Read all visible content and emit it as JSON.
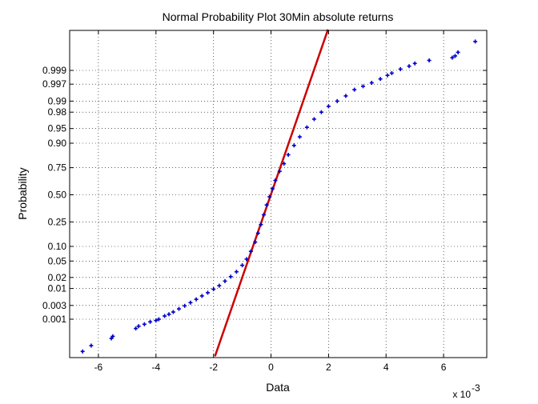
{
  "chart_data": {
    "type": "scatter",
    "title": "Normal Probability Plot 30Min absolute returns",
    "xlabel": "Data",
    "ylabel": "Probability",
    "x_multiplier": "x 10",
    "x_exponent": "-3",
    "xlim": [
      -7,
      7.5
    ],
    "x_ticks": [
      -6,
      -4,
      -2,
      0,
      2,
      4,
      6
    ],
    "x_tick_labels": [
      "-6",
      "-4",
      "-2",
      "0",
      "2",
      "4",
      "6"
    ],
    "y_ticks": [
      0.001,
      0.003,
      0.01,
      0.02,
      0.05,
      0.1,
      0.25,
      0.5,
      0.75,
      0.9,
      0.95,
      0.98,
      0.99,
      0.997,
      0.999
    ],
    "y_tick_labels": [
      "0.001",
      "0.003",
      "0.01",
      "0.02",
      "0.05",
      "0.10",
      "0.25",
      "0.50",
      "0.75",
      "0.90",
      "0.95",
      "0.98",
      "0.99",
      "0.997",
      "0.999"
    ],
    "grid": true,
    "colors": {
      "points": "#0000cc",
      "fit_line": "#cc0000",
      "grid": "#000000"
    },
    "reference_line": {
      "x": [
        -1.95,
        1.98
      ],
      "p": [
        3e-05,
        0.99998
      ]
    },
    "series": [
      {
        "marker": "+",
        "points": [
          {
            "x": -6.55,
            "p": 5e-05
          },
          {
            "x": -6.25,
            "p": 9e-05
          },
          {
            "x": -5.55,
            "p": 0.00018
          },
          {
            "x": -5.5,
            "p": 0.00022
          },
          {
            "x": -4.7,
            "p": 0.00045
          },
          {
            "x": -4.6,
            "p": 0.00055
          },
          {
            "x": -4.4,
            "p": 0.00065
          },
          {
            "x": -4.2,
            "p": 0.0008
          },
          {
            "x": -4.0,
            "p": 0.0009
          },
          {
            "x": -3.9,
            "p": 0.001
          },
          {
            "x": -3.7,
            "p": 0.0013
          },
          {
            "x": -3.55,
            "p": 0.0015
          },
          {
            "x": -3.4,
            "p": 0.0018
          },
          {
            "x": -3.2,
            "p": 0.0023
          },
          {
            "x": -3.0,
            "p": 0.0029
          },
          {
            "x": -2.8,
            "p": 0.0037
          },
          {
            "x": -2.6,
            "p": 0.0047
          },
          {
            "x": -2.4,
            "p": 0.006
          },
          {
            "x": -2.2,
            "p": 0.0075
          },
          {
            "x": -2.0,
            "p": 0.0095
          },
          {
            "x": -1.8,
            "p": 0.012
          },
          {
            "x": -1.6,
            "p": 0.016
          },
          {
            "x": -1.4,
            "p": 0.021
          },
          {
            "x": -1.2,
            "p": 0.028
          },
          {
            "x": -1.0,
            "p": 0.04
          },
          {
            "x": -0.85,
            "p": 0.055
          },
          {
            "x": -0.7,
            "p": 0.08
          },
          {
            "x": -0.55,
            "p": 0.12
          },
          {
            "x": -0.45,
            "p": 0.17
          },
          {
            "x": -0.35,
            "p": 0.23
          },
          {
            "x": -0.25,
            "p": 0.31
          },
          {
            "x": -0.15,
            "p": 0.4
          },
          {
            "x": -0.05,
            "p": 0.48
          },
          {
            "x": 0.05,
            "p": 0.56
          },
          {
            "x": 0.15,
            "p": 0.64
          },
          {
            "x": 0.3,
            "p": 0.72
          },
          {
            "x": 0.45,
            "p": 0.78
          },
          {
            "x": 0.6,
            "p": 0.84
          },
          {
            "x": 0.8,
            "p": 0.89
          },
          {
            "x": 1.0,
            "p": 0.925
          },
          {
            "x": 1.25,
            "p": 0.953
          },
          {
            "x": 1.5,
            "p": 0.97
          },
          {
            "x": 1.75,
            "p": 0.98
          },
          {
            "x": 2.0,
            "p": 0.986
          },
          {
            "x": 2.3,
            "p": 0.99
          },
          {
            "x": 2.6,
            "p": 0.993
          },
          {
            "x": 2.9,
            "p": 0.9955
          },
          {
            "x": 3.2,
            "p": 0.9965
          },
          {
            "x": 3.5,
            "p": 0.9973
          },
          {
            "x": 3.8,
            "p": 0.998
          },
          {
            "x": 4.05,
            "p": 0.9985
          },
          {
            "x": 4.2,
            "p": 0.99875
          },
          {
            "x": 4.5,
            "p": 0.9991
          },
          {
            "x": 4.8,
            "p": 0.9993
          },
          {
            "x": 5.0,
            "p": 0.99945
          },
          {
            "x": 5.5,
            "p": 0.99958
          },
          {
            "x": 6.3,
            "p": 0.99967
          },
          {
            "x": 6.4,
            "p": 0.99972
          },
          {
            "x": 6.5,
            "p": 0.9998
          },
          {
            "x": 7.1,
            "p": 0.99993
          }
        ]
      }
    ]
  }
}
